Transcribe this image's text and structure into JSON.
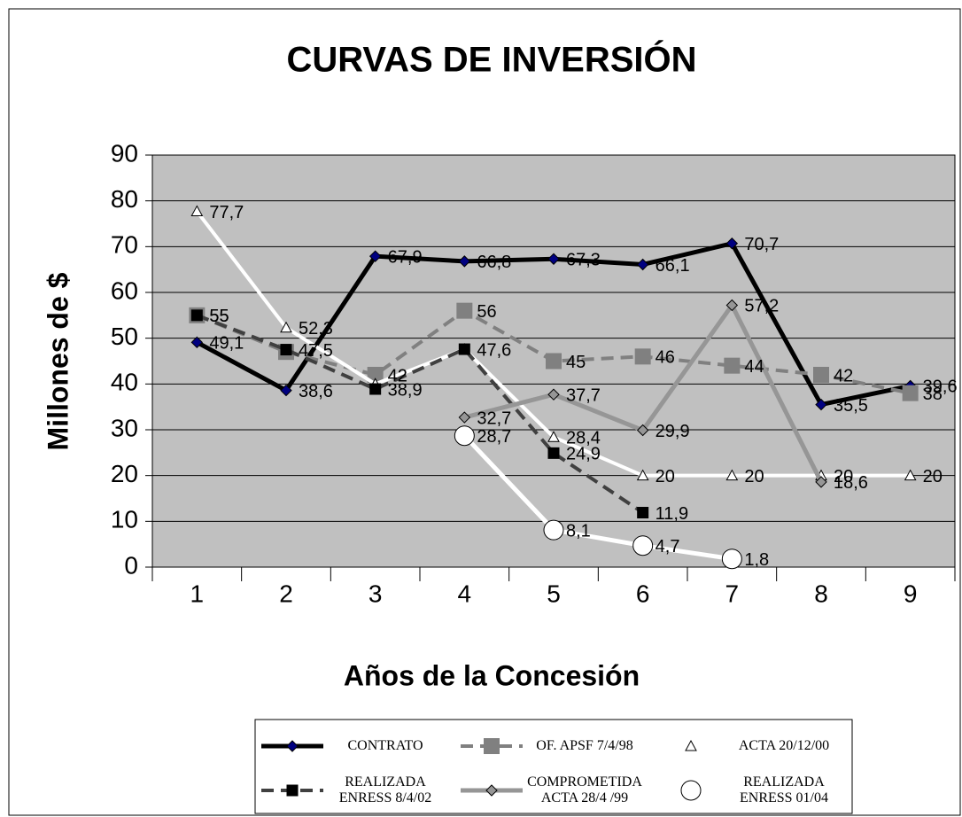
{
  "chart_data": {
    "type": "line",
    "title": "CURVAS DE INVERSIÓN",
    "x_label": "Años de la Concesión",
    "y_label": "Millones de $",
    "categories": [
      "1",
      "2",
      "3",
      "4",
      "5",
      "6",
      "7",
      "8",
      "9"
    ],
    "ylim": [
      0,
      90
    ],
    "yticks": [
      0,
      10,
      20,
      30,
      40,
      50,
      60,
      70,
      80,
      90
    ],
    "grid": true,
    "legend": "bottom",
    "plot_background": "#c0c0c0",
    "series": [
      {
        "name": "CONTRATO",
        "color": "#000000",
        "marker": "diamond",
        "marker_color": "#000080",
        "dashed": false,
        "values": [
          49.1,
          38.6,
          67.9,
          66.8,
          67.3,
          66.1,
          70.7,
          35.5,
          39.6
        ],
        "value_labels": [
          "49,1",
          "38,6",
          "67,9",
          "66,8",
          "67,3",
          "66,1",
          "70,7",
          "35,5",
          "39,6"
        ]
      },
      {
        "name": "OF.  APSF 7/4/98",
        "color": "#808080",
        "marker": "square",
        "marker_color": "#808080",
        "dashed": true,
        "values": [
          55,
          47,
          42,
          56,
          45,
          46,
          44,
          42,
          38
        ],
        "value_labels": [
          "55",
          null,
          "42",
          "56",
          "45",
          "46",
          "44",
          "42",
          "38"
        ]
      },
      {
        "name": "ACTA 20/12/00",
        "color": "#ffffff",
        "marker": "triangle",
        "marker_color": "#ffffff",
        "dashed": false,
        "values": [
          77.7,
          52.3,
          40,
          47.6,
          28.4,
          20,
          20,
          20,
          20
        ],
        "value_labels": [
          "77,7",
          "52,3",
          null,
          null,
          "28,4",
          "20",
          "20",
          "20",
          "20"
        ]
      },
      {
        "name": "REALIZADA ENRESS 8/4/02",
        "color": "#404040",
        "marker": "square-small",
        "marker_color": "#000000",
        "dashed": true,
        "values": [
          55,
          47.5,
          38.9,
          47.6,
          24.9,
          11.9,
          null,
          null,
          null
        ],
        "value_labels": [
          "55",
          "47,5",
          "38,9",
          "47,6",
          "24,9",
          "11,9",
          null,
          null,
          null
        ]
      },
      {
        "name": "COMPROMETIDA ACTA 28/4 /99",
        "color": "#969696",
        "marker": "diamond",
        "marker_color": "#969696",
        "dashed": false,
        "values": [
          null,
          null,
          null,
          32.7,
          37.7,
          29.9,
          57.2,
          18.6,
          null
        ],
        "value_labels": [
          null,
          null,
          null,
          "32,7",
          "37,7",
          "29,9",
          "57,2",
          "18,6",
          null
        ]
      },
      {
        "name": "REALIZADA ENRESS  01/04",
        "color": "#ffffff",
        "marker": "circle",
        "marker_color": "#ffffff",
        "dashed": false,
        "values": [
          null,
          null,
          null,
          28.7,
          8.1,
          4.7,
          1.8,
          null,
          null
        ],
        "value_labels": [
          null,
          null,
          null,
          "28,7",
          "8,1",
          "4,7",
          "1,8",
          null,
          null
        ]
      }
    ]
  }
}
